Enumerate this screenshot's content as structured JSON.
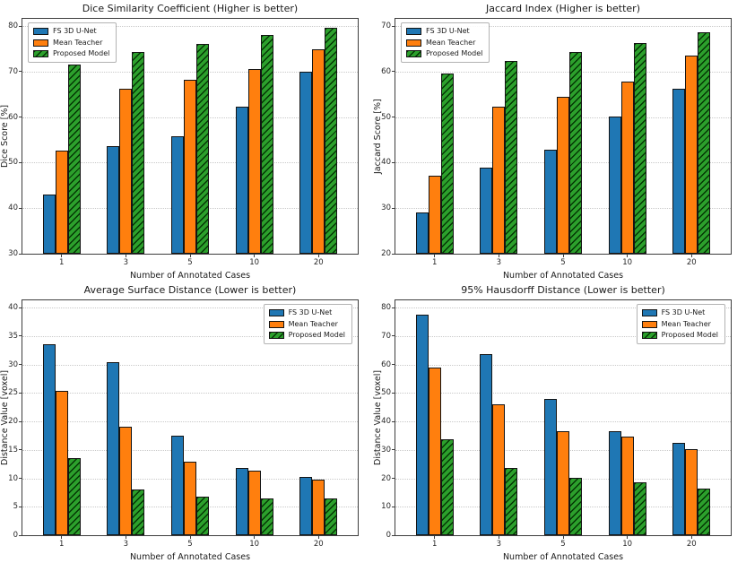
{
  "figure": {
    "background": "#ffffff"
  },
  "chart_data": [
    {
      "type": "bar",
      "title": "Dice Similarity Coefficient (Higher is better)",
      "xlabel": "Number of Annotated Cases",
      "ylabel": "Dice Score [%]",
      "categories": [
        "1",
        "3",
        "5",
        "10",
        "20"
      ],
      "ylim": [
        30,
        80
      ],
      "ytick_step": 10,
      "grid": true,
      "legend_position": "upper-left",
      "series": [
        {
          "name": "FS 3D U-Net",
          "color": "#1f77b4",
          "hatch": "none",
          "values": [
            43.0,
            53.6,
            55.9,
            62.4,
            69.9
          ]
        },
        {
          "name": "Mean Teacher",
          "color": "#ff7f0e",
          "hatch": "none",
          "values": [
            52.6,
            66.2,
            68.2,
            70.6,
            75.0
          ]
        },
        {
          "name": "Proposed Model",
          "color": "#2ca02c",
          "hatch": "diagonal",
          "values": [
            71.6,
            74.3,
            76.1,
            78.0,
            79.6
          ]
        }
      ]
    },
    {
      "type": "bar",
      "title": "Jaccard Index (Higher is better)",
      "xlabel": "Number of Annotated Cases",
      "ylabel": "Jaccard Score [%]",
      "categories": [
        "1",
        "3",
        "5",
        "10",
        "20"
      ],
      "ylim": [
        20,
        70
      ],
      "ytick_step": 10,
      "grid": true,
      "legend_position": "upper-left",
      "series": [
        {
          "name": "FS 3D U-Net",
          "color": "#1f77b4",
          "hatch": "none",
          "values": [
            29.1,
            39.0,
            42.9,
            50.2,
            56.3
          ]
        },
        {
          "name": "Mean Teacher",
          "color": "#ff7f0e",
          "hatch": "none",
          "values": [
            37.2,
            52.3,
            54.4,
            57.8,
            63.6
          ]
        },
        {
          "name": "Proposed Model",
          "color": "#2ca02c",
          "hatch": "diagonal",
          "values": [
            59.5,
            62.3,
            64.4,
            66.2,
            68.7
          ]
        }
      ]
    },
    {
      "type": "bar",
      "title": "Average Surface Distance (Lower is better)",
      "xlabel": "Number of Annotated Cases",
      "ylabel": "Distance Value [voxel]",
      "categories": [
        "1",
        "3",
        "5",
        "10",
        "20"
      ],
      "ylim": [
        0,
        40
      ],
      "ytick_step": 5,
      "grid": true,
      "legend_position": "upper-right",
      "series": [
        {
          "name": "FS 3D U-Net",
          "color": "#1f77b4",
          "hatch": "none",
          "values": [
            33.6,
            30.4,
            17.5,
            11.8,
            10.3
          ]
        },
        {
          "name": "Mean Teacher",
          "color": "#ff7f0e",
          "hatch": "none",
          "values": [
            25.4,
            19.1,
            12.9,
            11.4,
            9.8
          ]
        },
        {
          "name": "Proposed Model",
          "color": "#2ca02c",
          "hatch": "diagonal",
          "values": [
            13.6,
            8.1,
            6.8,
            6.5,
            6.5
          ]
        }
      ]
    },
    {
      "type": "bar",
      "title": "95% Hausdorff Distance (Lower is better)",
      "xlabel": "Number of Annotated Cases",
      "ylabel": "Distance Value [voxel]",
      "categories": [
        "1",
        "3",
        "5",
        "10",
        "20"
      ],
      "ylim": [
        0,
        80
      ],
      "ytick_step": 10,
      "grid": true,
      "legend_position": "upper-right",
      "series": [
        {
          "name": "FS 3D U-Net",
          "color": "#1f77b4",
          "hatch": "none",
          "values": [
            77.4,
            63.7,
            47.8,
            36.6,
            32.5
          ]
        },
        {
          "name": "Mean Teacher",
          "color": "#ff7f0e",
          "hatch": "none",
          "values": [
            59.0,
            46.0,
            36.6,
            34.7,
            30.2
          ]
        },
        {
          "name": "Proposed Model",
          "color": "#2ca02c",
          "hatch": "diagonal",
          "values": [
            33.7,
            23.6,
            20.3,
            18.5,
            16.5
          ]
        }
      ]
    }
  ]
}
